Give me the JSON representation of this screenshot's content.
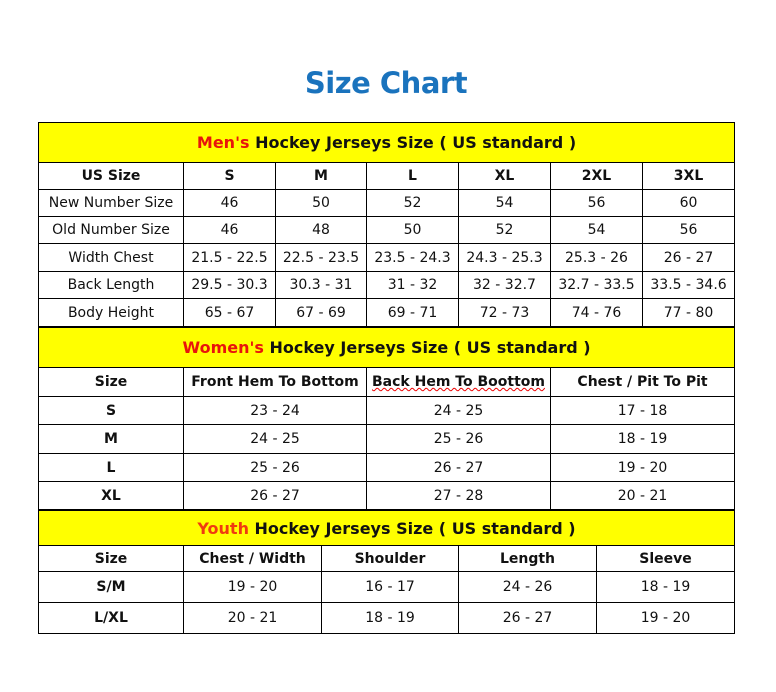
{
  "title": "Size Chart",
  "men": {
    "label_colored": "Men's",
    "label_rest": " Hockey Jerseys Size ( US standard )",
    "headers": [
      "US Size",
      "S",
      "M",
      "L",
      "XL",
      "2XL",
      "3XL"
    ],
    "rows": [
      [
        "New Number Size",
        "46",
        "50",
        "52",
        "54",
        "56",
        "60"
      ],
      [
        "Old Number Size",
        "46",
        "48",
        "50",
        "52",
        "54",
        "56"
      ],
      [
        "Width Chest",
        "21.5 - 22.5",
        "22.5 - 23.5",
        "23.5 - 24.3",
        "24.3 - 25.3",
        "25.3 - 26",
        "26 - 27"
      ],
      [
        "Back Length",
        "29.5 - 30.3",
        "30.3 - 31",
        "31 - 32",
        "32 - 32.7",
        "32.7 - 33.5",
        "33.5 - 34.6"
      ],
      [
        "Body Height",
        "65 - 67",
        "67 - 69",
        "69 - 71",
        "72 - 73",
        "74 - 76",
        "77 - 80"
      ]
    ]
  },
  "women": {
    "label_colored": "Women's",
    "label_rest": " Hockey Jerseys Size ( US standard )",
    "headers": [
      "Size",
      "Front Hem To Bottom",
      "Back Hem To Boottom",
      "Chest / Pit To Pit"
    ],
    "rows": [
      [
        "S",
        "23 - 24",
        "24 - 25",
        "17 - 18"
      ],
      [
        "M",
        "24 - 25",
        "25 - 26",
        "18 - 19"
      ],
      [
        "L",
        "25 - 26",
        "26 - 27",
        "19 - 20"
      ],
      [
        "XL",
        "26 - 27",
        "27 - 28",
        "20 - 21"
      ]
    ]
  },
  "youth": {
    "label_colored": "Youth",
    "label_rest": " Hockey Jerseys Size ( US standard )",
    "headers": [
      "Size",
      "Chest / Width",
      "Shoulder",
      "Length",
      "Sleeve"
    ],
    "rows": [
      [
        "S/M",
        "19 - 20",
        "16 - 17",
        "24 - 26",
        "18 - 19"
      ],
      [
        "L/XL",
        "20 - 21",
        "18 - 19",
        "26 - 27",
        "19 - 20"
      ]
    ]
  },
  "colors": {
    "title": "#1a73bd",
    "band": "#ffff00",
    "accent_red": "#e8140c"
  }
}
